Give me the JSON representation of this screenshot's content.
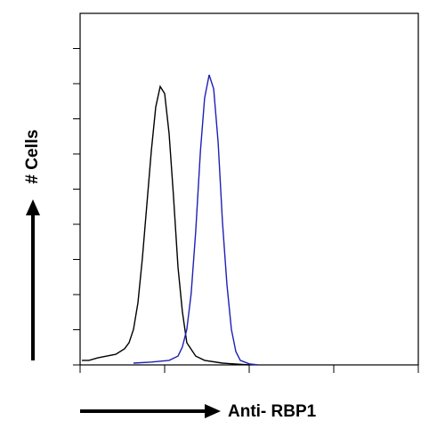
{
  "chart_data": {
    "type": "line",
    "y_label": "# Cells",
    "x_label": "Anti- RBP1",
    "log_x": true,
    "xlim": [
      1,
      10000
    ],
    "xticks": [
      1,
      10,
      100,
      1000,
      10000
    ],
    "ylim": [
      0,
      100
    ],
    "yticks": [
      0,
      10,
      20,
      30,
      40,
      50,
      60,
      70,
      80,
      90
    ],
    "series": [
      {
        "color": "#000000",
        "x": [
          1.05,
          1.27,
          1.62,
          2.07,
          2.64,
          3.36,
          3.79,
          4.28,
          4.83,
          5.46,
          6.16,
          6.95,
          7.85,
          8.86,
          10.0,
          11.3,
          12.7,
          14.4,
          16.2,
          18.3,
          23.3,
          29.7,
          48.3,
          100
        ],
        "values": [
          1.3,
          1.3,
          2.0,
          2.5,
          3.0,
          4.6,
          6.3,
          10.1,
          17.7,
          30.4,
          45.6,
          60.8,
          73.4,
          79.2,
          77.2,
          65.8,
          48.1,
          27.8,
          15.2,
          6.3,
          2.5,
          1.3,
          0.5,
          0
        ]
      },
      {
        "color": "#1f1fb4",
        "x": [
          4.28,
          6.95,
          11.3,
          14.4,
          16.2,
          18.3,
          20.6,
          23.3,
          26.5,
          29.7,
          33.6,
          38.0,
          42.9,
          48.3,
          54.6,
          61.6,
          69.6,
          78.5,
          100,
          127
        ],
        "values": [
          0.5,
          0.8,
          1.3,
          2.5,
          5.1,
          10.1,
          20.3,
          38,
          60.8,
          75.9,
          82.5,
          78.5,
          63.3,
          40.5,
          22.8,
          10.1,
          3.8,
          1.3,
          0.3,
          0
        ]
      }
    ]
  }
}
